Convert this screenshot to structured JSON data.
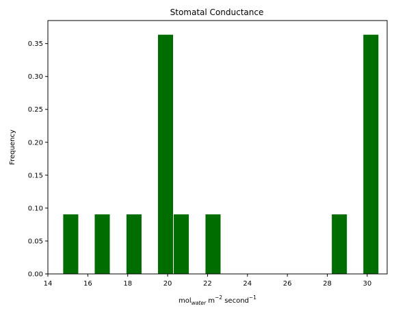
{
  "chart_data": {
    "type": "bar",
    "title": "Stomatal Conductance",
    "xlabel": {
      "base": "mol",
      "sub": "water",
      "mid": " m",
      "sup1": "−2",
      "tail": " second",
      "sup2": "−1"
    },
    "ylabel": "Frequency",
    "xlim": [
      14,
      31
    ],
    "ylim": [
      0,
      0.385
    ],
    "x_ticks": [
      "14",
      "16",
      "18",
      "20",
      "22",
      "24",
      "26",
      "28",
      "30"
    ],
    "x_tick_values": [
      14,
      16,
      18,
      20,
      22,
      24,
      26,
      28,
      30
    ],
    "y_ticks": [
      "0.00",
      "0.05",
      "0.10",
      "0.15",
      "0.20",
      "0.25",
      "0.30",
      "0.35"
    ],
    "y_tick_values": [
      0,
      0.05,
      0.1,
      0.15,
      0.2,
      0.25,
      0.3,
      0.35
    ],
    "bin_width": 0.79,
    "bars": [
      {
        "x_start": 14.75,
        "value": 0.091
      },
      {
        "x_start": 16.33,
        "value": 0.091
      },
      {
        "x_start": 17.92,
        "value": 0.091
      },
      {
        "x_start": 19.5,
        "value": 0.364
      },
      {
        "x_start": 20.29,
        "value": 0.091
      },
      {
        "x_start": 21.88,
        "value": 0.091
      },
      {
        "x_start": 28.21,
        "value": 0.091
      },
      {
        "x_start": 29.79,
        "value": 0.364
      }
    ],
    "bar_color": "#006d00",
    "bar_edge_color": "#ffffff",
    "grid": false,
    "legend": "none"
  }
}
